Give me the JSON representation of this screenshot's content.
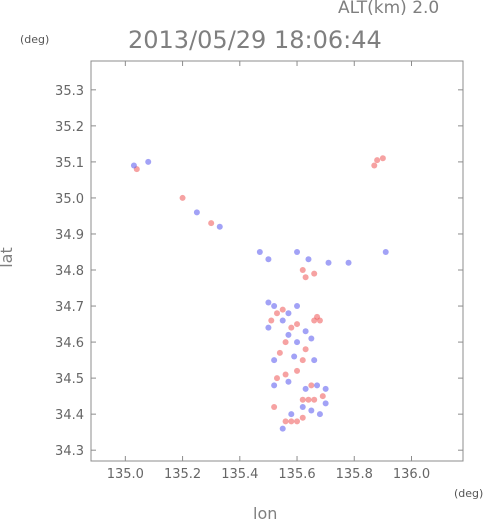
{
  "header": {
    "altitude_label": "ALT(km)  2.0",
    "timestamp": "2013/05/29  18:06:44",
    "lat_unit": "(deg)",
    "lon_unit": "(deg)"
  },
  "chart_data": {
    "type": "scatter",
    "title": "2013/05/29  18:06:44",
    "xlabel": "lon",
    "ylabel": "lat",
    "xlim": [
      134.88,
      136.18
    ],
    "ylim": [
      34.27,
      35.38
    ],
    "x_ticks": [
      135.0,
      135.2,
      135.4,
      135.6,
      135.8,
      136.0
    ],
    "x_tick_labels": [
      "135.0",
      "135.2",
      "135.4",
      "135.6",
      "135.8",
      "136.0"
    ],
    "y_ticks": [
      34.3,
      34.4,
      34.5,
      34.6,
      34.7,
      34.8,
      34.9,
      35.0,
      35.1,
      35.2,
      35.3
    ],
    "y_tick_labels": [
      "34.3",
      "34.4",
      "34.5",
      "34.6",
      "34.7",
      "34.8",
      "34.9",
      "35.0",
      "35.1",
      "35.2",
      "35.3"
    ],
    "colors": {
      "positive": "#ee5555",
      "negative": "#5555ee",
      "frame": "#8c8c8c"
    },
    "series": [
      {
        "color": "#ee5555",
        "points": [
          [
            135.88,
            35.105
          ],
          [
            135.9,
            35.11
          ],
          [
            135.87,
            35.09
          ],
          [
            135.63,
            34.78
          ],
          [
            135.62,
            34.8
          ],
          [
            135.66,
            34.79
          ],
          [
            135.53,
            34.68
          ],
          [
            135.51,
            34.66
          ],
          [
            135.55,
            34.69
          ],
          [
            135.58,
            34.64
          ],
          [
            135.6,
            34.65
          ],
          [
            135.67,
            34.67
          ],
          [
            135.68,
            34.66
          ],
          [
            135.66,
            34.66
          ],
          [
            135.63,
            34.58
          ],
          [
            135.62,
            34.55
          ],
          [
            135.56,
            34.6
          ],
          [
            135.54,
            34.57
          ],
          [
            135.53,
            34.5
          ],
          [
            135.56,
            34.51
          ],
          [
            135.6,
            34.52
          ],
          [
            135.65,
            34.48
          ],
          [
            135.62,
            34.44
          ],
          [
            135.64,
            34.44
          ],
          [
            135.66,
            34.44
          ],
          [
            135.69,
            34.45
          ],
          [
            135.52,
            34.42
          ],
          [
            135.56,
            34.38
          ],
          [
            135.58,
            34.38
          ],
          [
            135.6,
            34.38
          ],
          [
            135.62,
            34.39
          ],
          [
            135.2,
            35.0
          ],
          [
            135.3,
            34.93
          ],
          [
            135.04,
            35.08
          ]
        ]
      },
      {
        "color": "#5555ee",
        "points": [
          [
            135.08,
            35.1
          ],
          [
            135.03,
            35.09
          ],
          [
            135.47,
            34.85
          ],
          [
            135.5,
            34.83
          ],
          [
            135.6,
            34.85
          ],
          [
            135.64,
            34.83
          ],
          [
            135.71,
            34.82
          ],
          [
            135.5,
            34.71
          ],
          [
            135.52,
            34.7
          ],
          [
            135.57,
            34.68
          ],
          [
            135.6,
            34.7
          ],
          [
            135.55,
            34.66
          ],
          [
            135.57,
            34.62
          ],
          [
            135.6,
            34.6
          ],
          [
            135.63,
            34.63
          ],
          [
            135.65,
            34.61
          ],
          [
            135.5,
            34.64
          ],
          [
            135.52,
            34.55
          ],
          [
            135.59,
            34.56
          ],
          [
            135.66,
            34.55
          ],
          [
            135.52,
            34.48
          ],
          [
            135.57,
            34.49
          ],
          [
            135.63,
            34.47
          ],
          [
            135.67,
            34.48
          ],
          [
            135.7,
            34.47
          ],
          [
            135.62,
            34.42
          ],
          [
            135.65,
            34.41
          ],
          [
            135.68,
            34.4
          ],
          [
            135.7,
            34.43
          ],
          [
            135.58,
            34.4
          ],
          [
            135.55,
            34.36
          ],
          [
            135.25,
            34.96
          ],
          [
            135.33,
            34.92
          ],
          [
            135.78,
            34.82
          ],
          [
            135.91,
            34.85
          ]
        ]
      }
    ]
  }
}
